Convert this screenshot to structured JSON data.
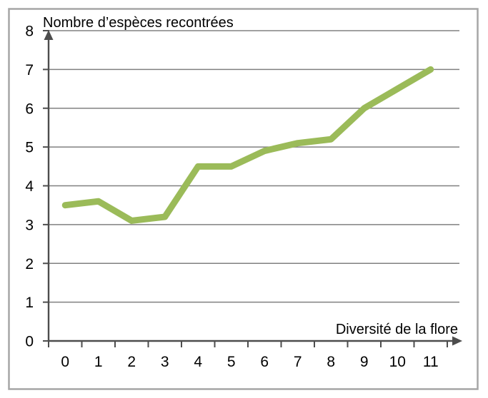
{
  "chart": {
    "colors": {
      "line": "#9BBB59",
      "grid": "#808080",
      "axis": "#4D4D4D",
      "border": "#A6A6A6",
      "text": "#000000",
      "background": "#FFFFFF"
    }
  },
  "chart_data": {
    "type": "line",
    "title": "Nombre d’espèces recontrées",
    "xlabel": "Diversité de la flore",
    "ylabel": "Nombre d’espèces recontrées",
    "x": [
      0,
      1,
      2,
      3,
      4,
      5,
      6,
      7,
      8,
      9,
      10,
      11
    ],
    "series": [
      {
        "name": "Nombre d’espèces recontrées",
        "values": [
          3.5,
          3.6,
          3.1,
          3.2,
          4.5,
          4.5,
          4.9,
          5.1,
          5.2,
          6,
          6.5,
          7
        ]
      }
    ],
    "xticks": [
      0,
      1,
      2,
      3,
      4,
      5,
      6,
      7,
      8,
      9,
      10,
      11
    ],
    "yticks": [
      0,
      1,
      2,
      3,
      4,
      5,
      6,
      7,
      8
    ],
    "xlim": [
      0,
      11
    ],
    "ylim": [
      0,
      8
    ],
    "grid": true,
    "legend": false
  }
}
